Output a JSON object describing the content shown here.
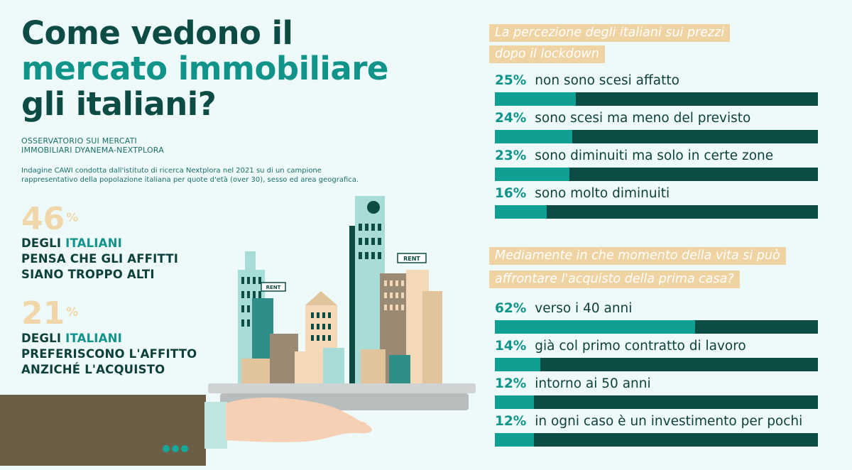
{
  "title": {
    "line1": "Come vedono il",
    "line2": "mercato immobiliare",
    "line3": "gli italiani?"
  },
  "source": {
    "observatory_line1": "OSSERVATORIO SUI MERCATI",
    "observatory_line2": "IMMOBILIARI DYANEMA-NEXTPLORA",
    "indagine_line1": "Indagine CAWI condotta dall'istituto di ricerca Nextplora nel 2021 su di un campione",
    "indagine_line2": "rappresentativo della popolazione italiana per quote d'età (over 30), sesso ed area geografica."
  },
  "stats": [
    {
      "value": "46",
      "unit": "%",
      "line1_pre": "DEGLI ",
      "line1_hl": "ITALIANI",
      "line2": "PENSA CHE GLI AFFITTI",
      "line3": "SIANO TROPPO ALTI"
    },
    {
      "value": "21",
      "unit": "%",
      "line1_pre": "DEGLI ",
      "line1_hl": "ITALIANI",
      "line2": "PREFERISCONO L'AFFITTO",
      "line3": "ANZICHÉ L'ACQUISTO"
    }
  ],
  "illustration": {
    "sign_text": "RENT"
  },
  "colors": {
    "background": "#eefafa",
    "dark_teal": "#0d4b45",
    "teal": "#10a093",
    "sand": "#efd3a2"
  },
  "chart_data": [
    {
      "type": "bar",
      "title_line1": "La percezione degli italiani sui prezzi",
      "title_line2": "dopo il lockdown",
      "categories": [
        "non sono scesi affatto",
        "sono scesi ma meno del previsto",
        "sono diminuiti ma solo in certe zone",
        "sono molto diminuiti"
      ],
      "values": [
        25,
        24,
        23,
        16
      ],
      "value_labels": [
        "25%",
        "24%",
        "23%",
        "16%"
      ],
      "ylim": [
        0,
        100
      ]
    },
    {
      "type": "bar",
      "title_line1": "Mediamente in che momento della vita si può",
      "title_line2": "affrontare l'acquisto della prima casa?",
      "categories": [
        "verso i 40 anni",
        "già col primo contratto di lavoro",
        "intorno ai 50 anni",
        "in ogni caso è un investimento per pochi"
      ],
      "values": [
        62,
        14,
        12,
        12
      ],
      "value_labels": [
        "62%",
        "14%",
        "12%",
        "12%"
      ],
      "ylim": [
        0,
        100
      ]
    }
  ]
}
